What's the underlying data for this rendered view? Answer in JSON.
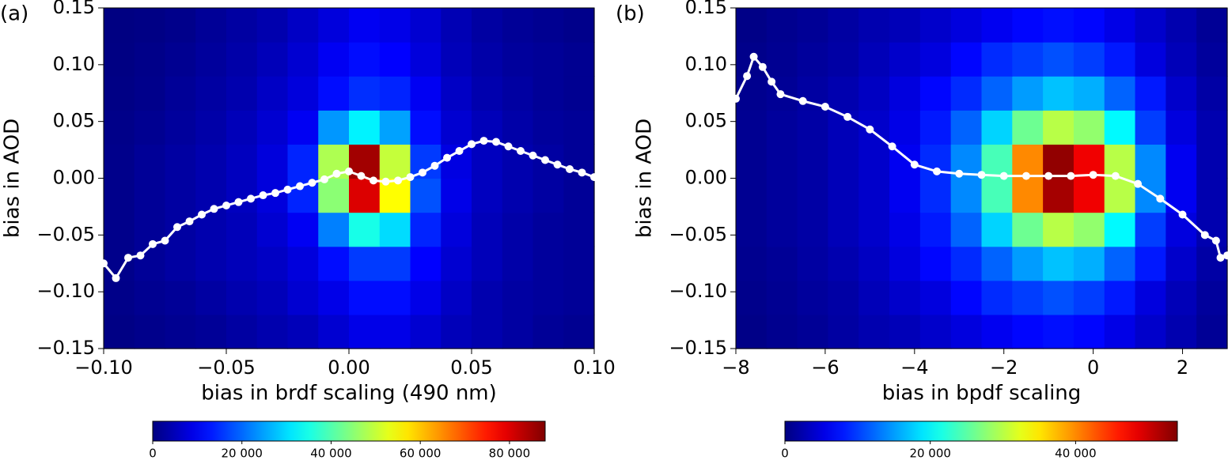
{
  "chart_data": [
    {
      "type": "heatmap",
      "panel_label": "(a)",
      "x_label": "bias in brdf scaling (490 nm)",
      "y_label": "bias in AOD",
      "colormap": "jet",
      "xlim": [
        -0.1,
        0.1
      ],
      "ylim": [
        -0.15,
        0.15
      ],
      "xticks": [
        {
          "value": -0.1,
          "label": "−0.10"
        },
        {
          "value": -0.05,
          "label": "−0.05"
        },
        {
          "value": 0,
          "label": "0.00"
        },
        {
          "value": 0.05,
          "label": "0.05"
        },
        {
          "value": 0.1,
          "label": "0.10"
        }
      ],
      "yticks": [
        {
          "value": -0.15,
          "label": "−0.15"
        },
        {
          "value": -0.1,
          "label": "−0.10"
        },
        {
          "value": -0.05,
          "label": "−0.05"
        },
        {
          "value": 0,
          "label": "0.00"
        },
        {
          "value": 0.05,
          "label": "0.05"
        },
        {
          "value": 0.1,
          "label": "0.10"
        },
        {
          "value": 0.15,
          "label": "0.15"
        }
      ],
      "z": [
        [
          500,
          1000,
          1500,
          2000,
          3000,
          4000,
          5000,
          7000,
          9000,
          9000,
          7000,
          5000,
          4000,
          3000,
          2000,
          1500
        ],
        [
          800,
          1500,
          2000,
          3000,
          4000,
          5000,
          7000,
          9000,
          12000,
          12000,
          9000,
          6000,
          4000,
          3000,
          2500,
          2000
        ],
        [
          1000,
          2000,
          3000,
          4000,
          5000,
          6000,
          8000,
          12000,
          16000,
          16000,
          11000,
          7000,
          5000,
          3500,
          2500,
          2000
        ],
        [
          1000,
          2000,
          3000,
          4000,
          5000,
          7000,
          10000,
          22000,
          35000,
          30000,
          14000,
          8000,
          5000,
          3500,
          2500,
          2000
        ],
        [
          1000,
          2000,
          3000,
          4000,
          5500,
          8000,
          14000,
          45000,
          80000,
          55000,
          18000,
          9000,
          5500,
          4000,
          3000,
          2000
        ],
        [
          1000,
          2000,
          3000,
          4000,
          5500,
          8000,
          14000,
          48000,
          85000,
          50000,
          16000,
          8500,
          5500,
          4000,
          3000,
          2000
        ],
        [
          800,
          1500,
          2500,
          3500,
          5000,
          7000,
          10000,
          24000,
          32000,
          25000,
          12000,
          7000,
          5000,
          3500,
          2500,
          2000
        ],
        [
          500,
          1000,
          2000,
          3000,
          4000,
          6000,
          8000,
          12000,
          15000,
          14000,
          10000,
          6000,
          4000,
          3000,
          2000,
          1500
        ],
        [
          300,
          800,
          1500,
          2500,
          3500,
          5000,
          7000,
          10000,
          12000,
          11000,
          8000,
          5000,
          3500,
          2500,
          2000,
          1500
        ],
        [
          200,
          500,
          1000,
          2000,
          3000,
          4000,
          6000,
          8000,
          10000,
          9000,
          7000,
          4500,
          3000,
          2000,
          1500,
          1000
        ]
      ],
      "line": {
        "color": "#ffffff",
        "x": [
          -0.1,
          -0.095,
          -0.09,
          -0.085,
          -0.08,
          -0.075,
          -0.07,
          -0.065,
          -0.06,
          -0.055,
          -0.05,
          -0.045,
          -0.04,
          -0.035,
          -0.03,
          -0.025,
          -0.02,
          -0.015,
          -0.01,
          -0.005,
          0,
          0.005,
          0.01,
          0.015,
          0.02,
          0.025,
          0.03,
          0.035,
          0.04,
          0.045,
          0.05,
          0.055,
          0.06,
          0.065,
          0.07,
          0.075,
          0.08,
          0.085,
          0.09,
          0.095,
          0.1
        ],
        "values": [
          -0.075,
          -0.088,
          -0.07,
          -0.068,
          -0.058,
          -0.055,
          -0.043,
          -0.038,
          -0.032,
          -0.027,
          -0.024,
          -0.021,
          -0.018,
          -0.015,
          -0.013,
          -0.01,
          -0.007,
          -0.004,
          -0.001,
          0.004,
          0.006,
          0.002,
          -0.002,
          -0.003,
          -0.002,
          0.001,
          0.005,
          0.011,
          0.018,
          0.024,
          0.03,
          0.033,
          0.032,
          0.028,
          0.024,
          0.02,
          0.016,
          0.012,
          0.008,
          0.005,
          0.001
        ]
      },
      "colorbar": {
        "lim": [
          0,
          88000
        ],
        "ticks": [
          0,
          {
            "value": 20000,
            "label": "20 000"
          },
          {
            "value": 40000,
            "label": "40 000"
          },
          {
            "value": 60000,
            "label": "60 000"
          },
          {
            "value": 80000,
            "label": "80 000"
          }
        ]
      }
    },
    {
      "type": "heatmap",
      "panel_label": "(b)",
      "x_label": "bias in bpdf scaling",
      "y_label": "bias in AOD",
      "colormap": "jet",
      "xlim": [
        -8,
        3
      ],
      "ylim": [
        -0.15,
        0.15
      ],
      "xticks": [
        {
          "value": -8,
          "label": "−8"
        },
        {
          "value": -6,
          "label": "−6"
        },
        {
          "value": -4,
          "label": "−4"
        },
        {
          "value": -2,
          "label": "−2"
        },
        0,
        2
      ],
      "yticks": [
        {
          "value": -0.15,
          "label": "−0.15"
        },
        {
          "value": -0.1,
          "label": "−0.10"
        },
        {
          "value": -0.05,
          "label": "−0.05"
        },
        {
          "value": 0,
          "label": "0.00"
        },
        {
          "value": 0.05,
          "label": "0.05"
        },
        {
          "value": 0.1,
          "label": "0.10"
        },
        {
          "value": 0.15,
          "label": "0.15"
        }
      ],
      "z": [
        [
          400,
          800,
          1200,
          1800,
          2500,
          3000,
          4000,
          5000,
          6000,
          7000,
          7500,
          7000,
          5500,
          4000,
          2500,
          1200
        ],
        [
          600,
          1000,
          1500,
          2000,
          3000,
          4000,
          5000,
          7000,
          9000,
          10000,
          11000,
          10000,
          8000,
          5000,
          3000,
          1500
        ],
        [
          800,
          1200,
          1800,
          2500,
          3500,
          5000,
          7000,
          9000,
          12000,
          15000,
          17000,
          16000,
          12000,
          8000,
          4000,
          2000
        ],
        [
          1000,
          1500,
          2000,
          3000,
          4000,
          5500,
          8000,
          12000,
          18000,
          26000,
          30000,
          28000,
          20000,
          10000,
          5000,
          2500
        ],
        [
          1000,
          1500,
          2000,
          3000,
          4000,
          6000,
          9000,
          14000,
          24000,
          40000,
          52000,
          48000,
          30000,
          14000,
          6000,
          2500
        ],
        [
          1000,
          1500,
          2000,
          3000,
          4000,
          6000,
          9000,
          14000,
          24000,
          40000,
          53000,
          48000,
          30000,
          14000,
          6000,
          2500
        ],
        [
          1000,
          1500,
          2000,
          3000,
          4000,
          5500,
          8000,
          12000,
          18000,
          26000,
          30000,
          28000,
          20000,
          10000,
          5000,
          2500
        ],
        [
          800,
          1200,
          1800,
          2500,
          3500,
          5000,
          7000,
          9000,
          12000,
          15000,
          17000,
          16000,
          12000,
          8000,
          4000,
          2000
        ],
        [
          600,
          1000,
          1500,
          2000,
          3000,
          4000,
          5000,
          7000,
          9000,
          10000,
          11000,
          10000,
          8000,
          5000,
          3000,
          1500
        ],
        [
          400,
          800,
          1200,
          1800,
          2500,
          3000,
          4000,
          5000,
          6000,
          7000,
          7500,
          7000,
          5500,
          4000,
          2500,
          1200
        ]
      ],
      "line": {
        "color": "#ffffff",
        "x": [
          -8,
          -7.75,
          -7.6,
          -7.4,
          -7.2,
          -7,
          -6.5,
          -6,
          -5.5,
          -5,
          -4.5,
          -4,
          -3.5,
          -3,
          -2.5,
          -2,
          -1.5,
          -1,
          -0.5,
          0,
          0.5,
          1,
          1.5,
          2,
          2.5,
          2.75,
          2.85,
          3
        ],
        "values": [
          0.07,
          0.09,
          0.107,
          0.098,
          0.085,
          0.074,
          0.068,
          0.063,
          0.054,
          0.043,
          0.028,
          0.012,
          0.006,
          0.004,
          0.003,
          0.002,
          0.002,
          0.002,
          0.002,
          0.003,
          0.002,
          -0.005,
          -0.018,
          -0.032,
          -0.05,
          -0.055,
          -0.07,
          -0.068
        ]
      },
      "colorbar": {
        "lim": [
          0,
          54000
        ],
        "ticks": [
          0,
          {
            "value": 20000,
            "label": "20 000"
          },
          {
            "value": 40000,
            "label": "40 000"
          }
        ]
      }
    }
  ]
}
